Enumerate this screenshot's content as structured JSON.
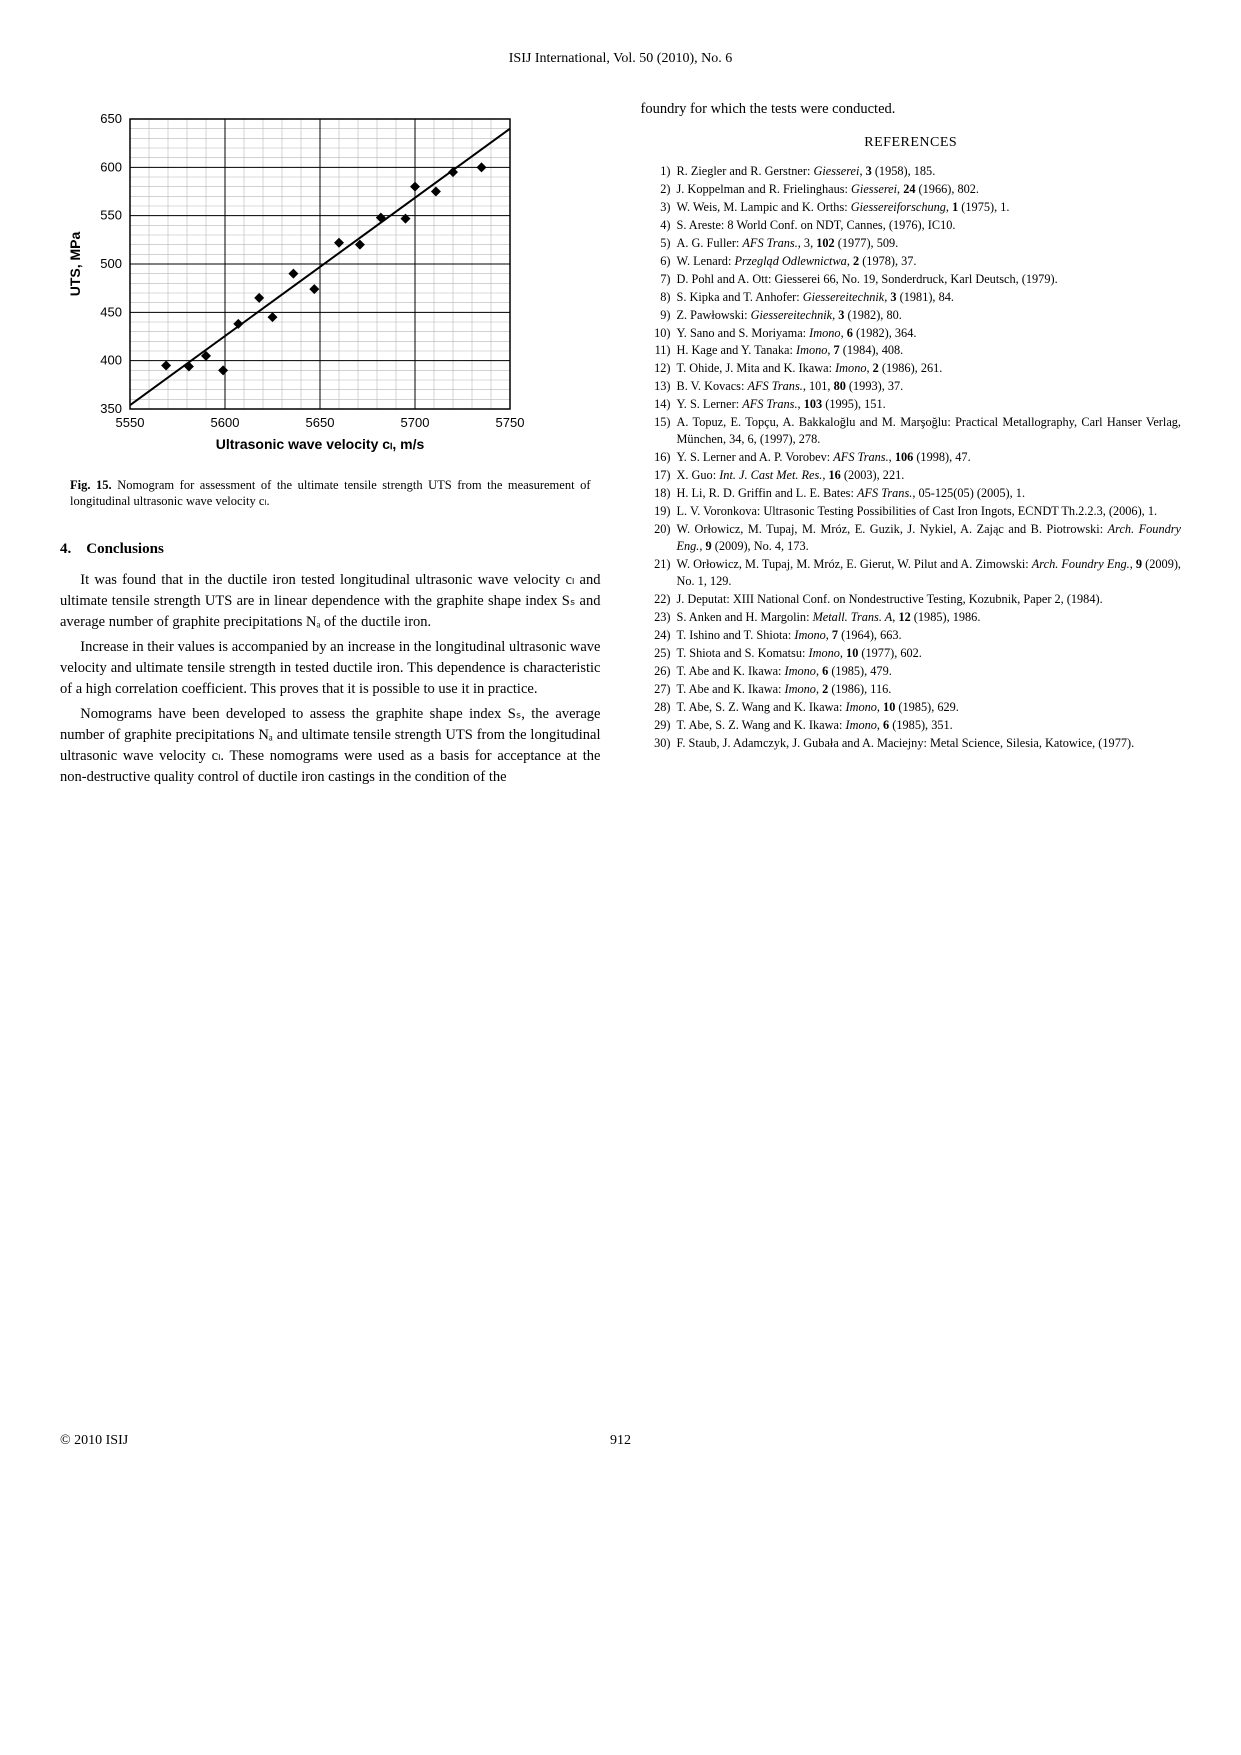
{
  "journal_header": "ISIJ International, Vol. 50 (2010), No. 6",
  "chart": {
    "type": "scatter-regression",
    "xlabel": "Ultrasonic wave velocity cₗ, m/s",
    "ylabel": "UTS, MPa",
    "xlim": [
      5550,
      5750
    ],
    "ylim": [
      350,
      650
    ],
    "xtick_step": 50,
    "ytick_step": 50,
    "x_minor": 5,
    "y_minor": 5,
    "background_color": "#ffffff",
    "axis_color": "#000000",
    "grid_color": "#000000",
    "minor_grid_color": "#b8b8b8",
    "line_color": "#000000",
    "point_color": "#000000",
    "axis_fontsize": 14,
    "tick_fontsize": 13,
    "line": {
      "x1": 5550,
      "y1": 354,
      "x2": 5750,
      "y2": 640
    },
    "points": [
      [
        5569,
        395
      ],
      [
        5581,
        394
      ],
      [
        5590,
        405
      ],
      [
        5599,
        390
      ],
      [
        5607,
        438
      ],
      [
        5618,
        465
      ],
      [
        5625,
        445
      ],
      [
        5636,
        490
      ],
      [
        5647,
        474
      ],
      [
        5660,
        522
      ],
      [
        5671,
        520
      ],
      [
        5682,
        548
      ],
      [
        5695,
        547
      ],
      [
        5700,
        580
      ],
      [
        5711,
        575
      ],
      [
        5720,
        595
      ],
      [
        5735,
        600
      ]
    ]
  },
  "fig_caption_label": "Fig. 15.",
  "fig_caption_text": "Nomogram for assessment of the ultimate tensile strength UTS from the measurement of longitudinal ultrasonic wave velocity cₗ.",
  "section_heading": "4. Conclusions",
  "paragraphs": [
    "It was found that in the ductile iron tested longitudinal ultrasonic wave velocity cₗ and ultimate tensile strength UTS are in linear dependence with the graphite shape index Sₛ and average number of graphite precipitations Nₐ of the ductile iron.",
    "Increase in their values is accompanied by an increase in the longitudinal ultrasonic wave velocity and ultimate tensile strength in tested ductile iron. This dependence is characteristic of a high correlation coefficient. This proves that it is possible to use it in practice.",
    "Nomograms have been developed to assess the graphite shape index Sₛ, the average number of graphite precipitations Nₐ and ultimate tensile strength UTS from the longitudinal ultrasonic wave velocity cₗ. These nomograms were used as a basis for acceptance at the non-destructive quality control of ductile iron castings in the condition of the"
  ],
  "right_intro": "foundry for which the tests were conducted.",
  "references_heading": "REFERENCES",
  "references": [
    "R. Ziegler and R. Gerstner: <em>Giesserei</em>, <b class='vol'>3</b> (1958), 185.",
    "J. Koppelman and R. Frielinghaus: <em>Giesserei</em>, <b class='vol'>24</b> (1966), 802.",
    "W. Weis, M. Lampic and K. Orths: <em>Giessereiforschung</em>, <b class='vol'>1</b> (1975), 1.",
    "S. Areste: 8 World Conf. on NDT, Cannes, (1976), IC10.",
    "A. G. Fuller: <em>AFS Trans.</em>, 3, <b class='vol'>102</b> (1977), 509.",
    "W. Lenard: <em>Przegląd Odlewnictwa</em>, <b class='vol'>2</b> (1978), 37.",
    "D. Pohl and A. Ott: Giesserei 66, No. 19, Sonderdruck, Karl Deutsch, (1979).",
    "S. Kipka and T. Anhofer: <em>Giessereitechnik</em>, <b class='vol'>3</b> (1981), 84.",
    "Z. Pawłowski: <em>Giessereitechnik</em>, <b class='vol'>3</b> (1982), 80.",
    "Y. Sano and S. Moriyama: <em>Imono</em>, <b class='vol'>6</b> (1982), 364.",
    "H. Kage and Y. Tanaka: <em>Imono</em>, <b class='vol'>7</b> (1984), 408.",
    "T. Ohide, J. Mita and K. Ikawa: <em>Imono</em>, <b class='vol'>2</b> (1986), 261.",
    "B. V. Kovacs: <em>AFS Trans.</em>, 101, <b class='vol'>80</b> (1993), 37.",
    "Y. S. Lerner: <em>AFS Trans.</em>, <b class='vol'>103</b> (1995), 151.",
    "A. Topuz, E. Topçu, A. Bakkaloğlu and M. Marşoğlu: Practical Metallography, Carl Hanser Verlag, München, 34, 6, (1997), 278.",
    "Y. S. Lerner and A. P. Vorobev: <em>AFS Trans.</em>, <b class='vol'>106</b> (1998), 47.",
    "X. Guo: <em>Int. J. Cast Met. Res.</em>, <b class='vol'>16</b> (2003), 221.",
    "H. Li, R. D. Griffin and L. E. Bates: <em>AFS Trans.</em>, 05-125(05) (2005), 1.",
    "L. V. Voronkova: Ultrasonic Testing Possibilities of Cast Iron Ingots, ECNDT Th.2.2.3, (2006), 1.",
    "W. Orłowicz, M. Tupaj, M. Mróz, E. Guzik, J. Nykiel, A. Zając and B. Piotrowski: <em>Arch. Foundry Eng.</em>, <b class='vol'>9</b> (2009), No. 4, 173.",
    "W. Orłowicz, M. Tupaj, M. Mróz, E. Gierut, W. Pilut and A. Zimowski: <em>Arch. Foundry Eng.</em>, <b class='vol'>9</b> (2009), No. 1, 129.",
    "J. Deputat: XIII National Conf. on Nondestructive Testing, Kozubnik, Paper 2, (1984).",
    "S. Anken and H. Margolin: <em>Metall. Trans. A</em>, <b class='vol'>12</b> (1985), 1986.",
    "T. Ishino and T. Shiota: <em>Imono</em>, <b class='vol'>7</b> (1964), 663.",
    "T. Shiota and S. Komatsu: <em>Imono</em>, <b class='vol'>10</b> (1977), 602.",
    "T. Abe and K. Ikawa: <em>Imono</em>, <b class='vol'>6</b> (1985), 479.",
    "T. Abe and K. Ikawa: <em>Imono</em>, <b class='vol'>2</b> (1986), 116.",
    "T. Abe, S. Z. Wang and K. Ikawa: <em>Imono</em>, <b class='vol'>10</b> (1985), 629.",
    "T. Abe, S. Z. Wang and K. Ikawa: <em>Imono</em>, <b class='vol'>6</b> (1985), 351.",
    "F. Staub, J. Adamczyk, J. Gubała and A. Maciejny: Metal Science, Silesia, Katowice, (1977)."
  ],
  "footer_left": "© 2010 ISIJ",
  "footer_page": "912"
}
